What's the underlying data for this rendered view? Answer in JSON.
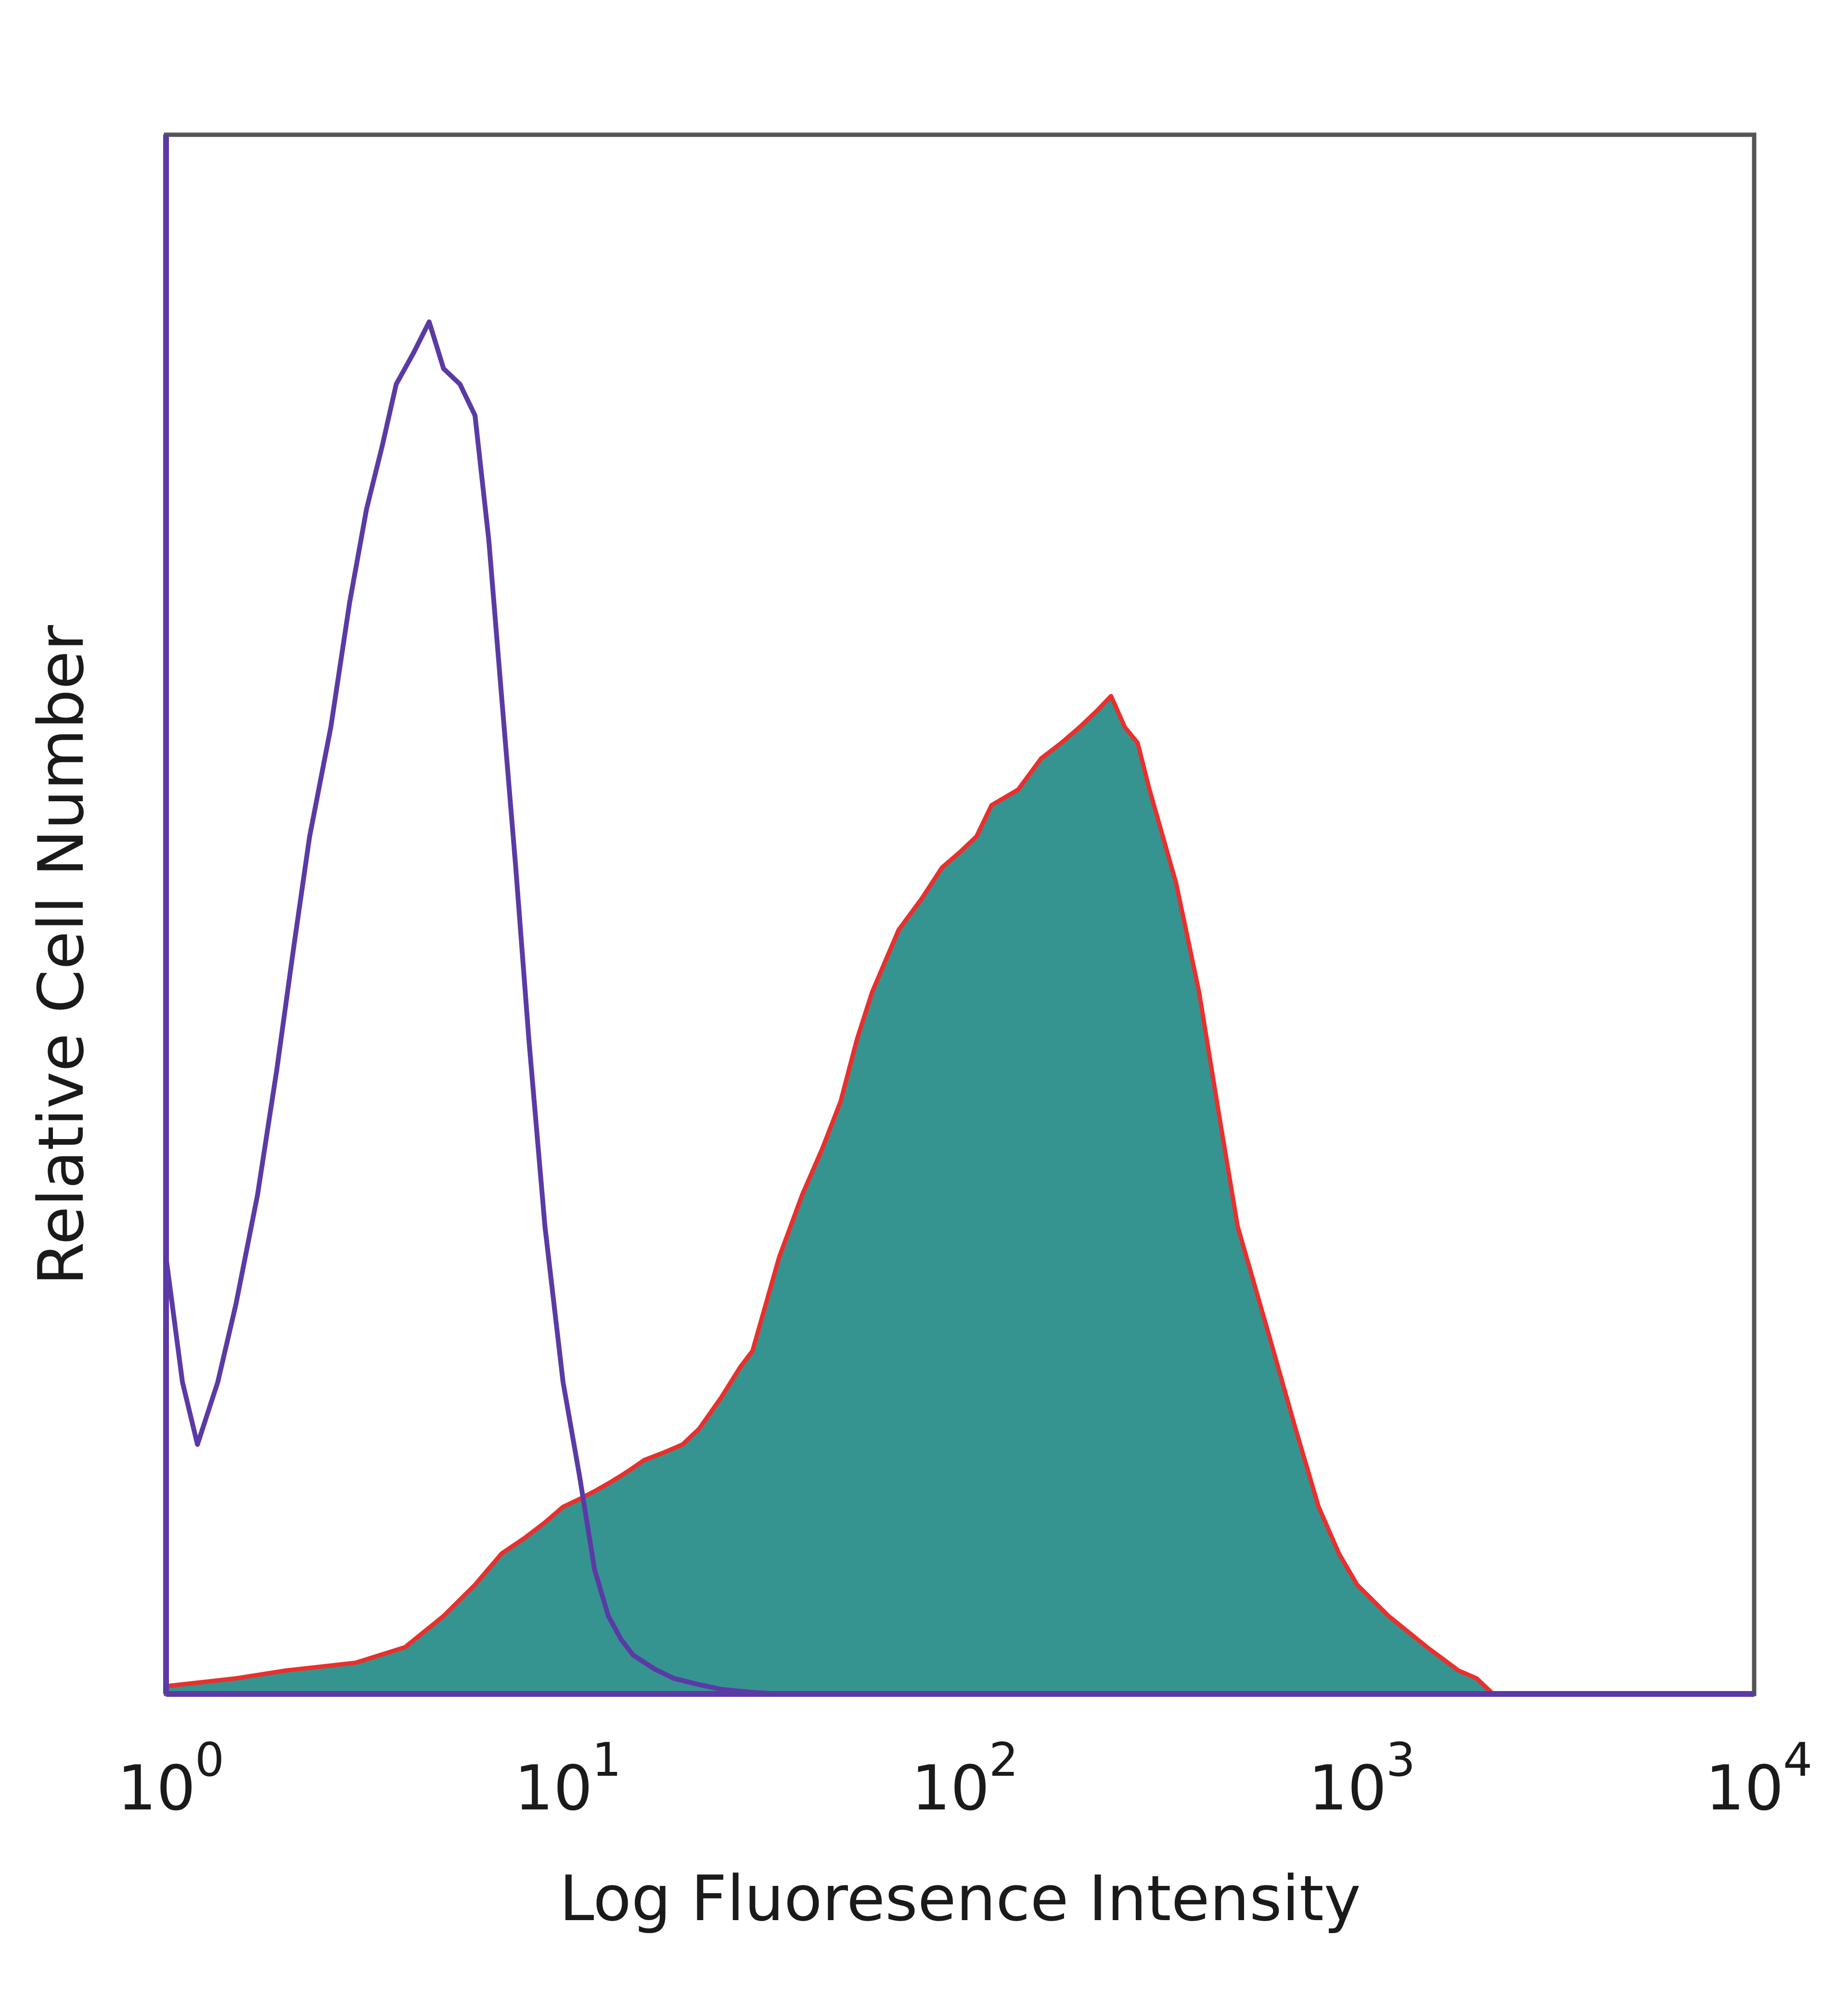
{
  "chart_data": {
    "type": "area",
    "title": "",
    "xlabel": "Log Fluoresence Intensity",
    "ylabel": "Relative Cell Number",
    "xscale": "log",
    "xlim": [
      1,
      10000
    ],
    "ylim": [
      0,
      100
    ],
    "grid": false,
    "legend": "none",
    "x_ticks": [
      {
        "base": "10",
        "exp": "0"
      },
      {
        "base": "10",
        "exp": "1"
      },
      {
        "base": "10",
        "exp": "2"
      },
      {
        "base": "10",
        "exp": "3"
      },
      {
        "base": "10",
        "exp": "4"
      }
    ],
    "series": [
      {
        "style": "outline",
        "color": "#5b3aa6",
        "x": [
          1,
          1.1,
          1.2,
          1.35,
          1.5,
          1.7,
          1.9,
          2.1,
          2.3,
          2.6,
          2.9,
          3.2,
          3.5,
          3.8,
          4.2,
          4.6,
          5.0,
          5.5,
          6.0,
          6.5,
          7.0,
          7.6,
          8.2,
          9.0,
          10,
          11,
          12,
          13,
          14,
          15,
          17,
          19,
          22,
          25,
          30,
          35
        ],
        "y": [
          28,
          20,
          16,
          20,
          25,
          32,
          40,
          48,
          55,
          62,
          70,
          76,
          80,
          84,
          86,
          88,
          85,
          84,
          82,
          74,
          64,
          53,
          42,
          30,
          20,
          14,
          8,
          5,
          3.5,
          2.5,
          1.6,
          1.0,
          0.6,
          0.3,
          0.1,
          0
        ]
      },
      {
        "style": "filled",
        "color": "#359490",
        "edge_color": "#e8302e",
        "x": [
          1,
          1.5,
          2,
          3,
          4,
          5,
          6,
          7,
          8,
          9,
          10,
          11,
          12,
          13,
          14,
          15,
          16,
          18,
          20,
          22,
          25,
          28,
          30,
          35,
          40,
          45,
          50,
          55,
          60,
          70,
          80,
          90,
          100,
          110,
          120,
          140,
          160,
          180,
          200,
          220,
          240,
          260,
          280,
          300,
          350,
          400,
          450,
          500,
          600,
          700,
          800,
          900,
          1000,
          1200,
          1500,
          1800,
          2000,
          2200
        ],
        "y": [
          0.5,
          1,
          1.5,
          2,
          3,
          5,
          7,
          9,
          10,
          11,
          12,
          12.5,
          13,
          13.5,
          14,
          14.5,
          15,
          15.5,
          16,
          17,
          19,
          21,
          22,
          28,
          32,
          35,
          38,
          42,
          45,
          49,
          51,
          53,
          54,
          55,
          57,
          58,
          60,
          61,
          62,
          63,
          64,
          62,
          61,
          58,
          52,
          45,
          37,
          30,
          23,
          17,
          12,
          9,
          7,
          5,
          3,
          1.5,
          1,
          0
        ]
      }
    ]
  }
}
